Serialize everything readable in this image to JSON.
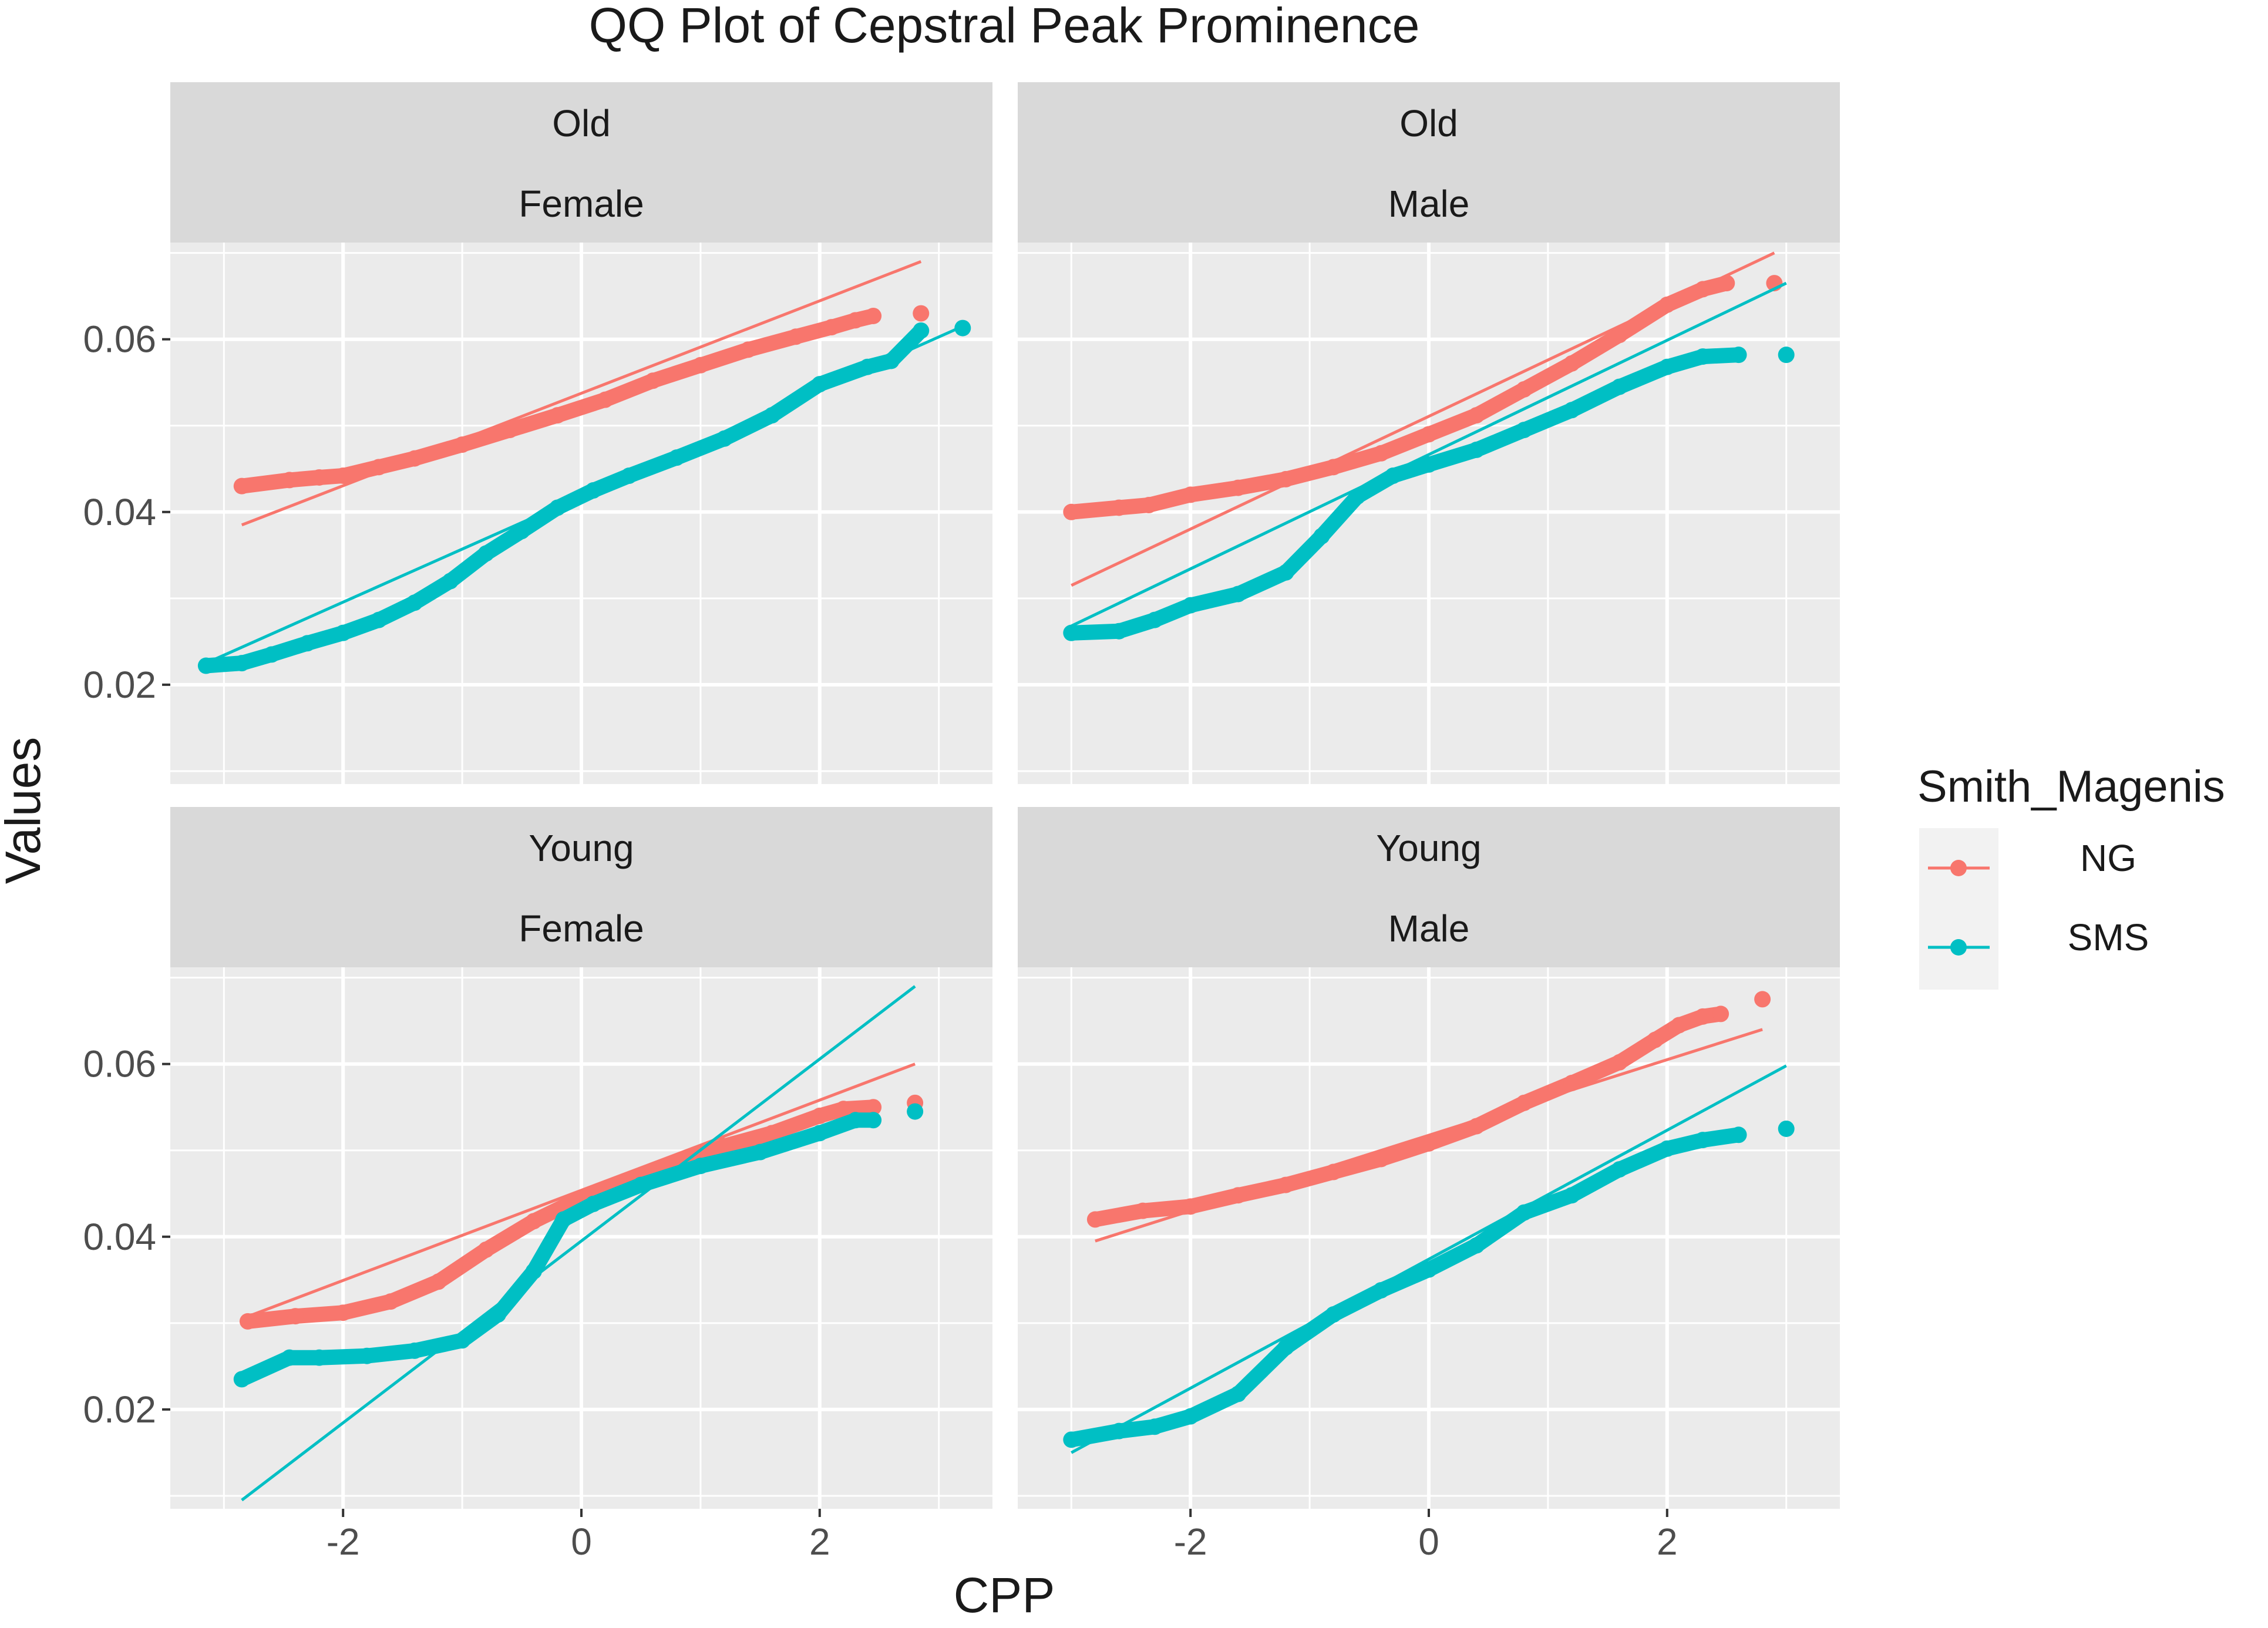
{
  "colors": {
    "NG": "#F8766D",
    "SMS": "#00BFC4",
    "panel_bg": "#EBEBEB",
    "strip_bg": "#D9D9D9",
    "grid": "#FFFFFF"
  },
  "chart_data": {
    "type": "scatter",
    "title": "QQ Plot of Cepstral Peak Prominence",
    "xlabel": "CPP",
    "ylabel": "Values",
    "xlim": [
      -3.45,
      3.45
    ],
    "ylim": [
      0.0085,
      0.0712
    ],
    "x_ticks": [
      -2,
      0,
      2
    ],
    "x_tick_labels": [
      "-2",
      "0",
      "2"
    ],
    "y_ticks": [
      0.02,
      0.04,
      0.06
    ],
    "y_tick_labels": [
      "0.02",
      "0.04",
      "0.06"
    ],
    "legend": {
      "title": "Smith_Magenis",
      "position": "right",
      "entries": [
        "NG",
        "SMS"
      ]
    },
    "panels": [
      {
        "strip": [
          "Old",
          "Female"
        ],
        "series": [
          {
            "name": "NG",
            "line": [
              [
                -2.85,
                0.0385
              ],
              [
                2.85,
                0.069
              ]
            ],
            "points": [
              [
                -2.85,
                0.043
              ],
              [
                -2.45,
                0.0437
              ],
              [
                -2.2,
                0.044
              ],
              [
                -2.0,
                0.0442
              ],
              [
                -1.7,
                0.0452
              ],
              [
                -1.4,
                0.0462
              ],
              [
                -1.0,
                0.0478
              ],
              [
                -0.6,
                0.0495
              ],
              [
                -0.2,
                0.0512
              ],
              [
                0.2,
                0.053
              ],
              [
                0.6,
                0.0552
              ],
              [
                1.0,
                0.057
              ],
              [
                1.4,
                0.0588
              ],
              [
                1.8,
                0.0603
              ],
              [
                2.1,
                0.0614
              ],
              [
                2.3,
                0.0622
              ],
              [
                2.45,
                0.0627
              ],
              [
                2.85,
                0.063
              ]
            ]
          },
          {
            "name": "SMS",
            "line": [
              [
                -3.15,
                0.0225
              ],
              [
                3.2,
                0.0615
              ]
            ],
            "points": [
              [
                -3.15,
                0.0222
              ],
              [
                -2.85,
                0.0225
              ],
              [
                -2.6,
                0.0235
              ],
              [
                -2.3,
                0.0248
              ],
              [
                -2.0,
                0.026
              ],
              [
                -1.7,
                0.0275
              ],
              [
                -1.4,
                0.0295
              ],
              [
                -1.1,
                0.032
              ],
              [
                -0.8,
                0.0352
              ],
              [
                -0.5,
                0.0378
              ],
              [
                -0.2,
                0.0405
              ],
              [
                0.1,
                0.0425
              ],
              [
                0.4,
                0.0442
              ],
              [
                0.8,
                0.0463
              ],
              [
                1.2,
                0.0485
              ],
              [
                1.6,
                0.0512
              ],
              [
                2.0,
                0.0548
              ],
              [
                2.4,
                0.0568
              ],
              [
                2.6,
                0.0575
              ],
              [
                2.85,
                0.061
              ],
              [
                3.2,
                0.0613
              ]
            ]
          }
        ]
      },
      {
        "strip": [
          "Old",
          "Male"
        ],
        "series": [
          {
            "name": "NG",
            "line": [
              [
                -3.0,
                0.0315
              ],
              [
                2.9,
                0.07
              ]
            ],
            "points": [
              [
                -3.0,
                0.04
              ],
              [
                -2.6,
                0.0405
              ],
              [
                -2.35,
                0.0408
              ],
              [
                -2.0,
                0.042
              ],
              [
                -1.6,
                0.0428
              ],
              [
                -1.2,
                0.0438
              ],
              [
                -0.8,
                0.0452
              ],
              [
                -0.4,
                0.0468
              ],
              [
                0.0,
                0.049
              ],
              [
                0.4,
                0.0512
              ],
              [
                0.8,
                0.0542
              ],
              [
                1.2,
                0.0572
              ],
              [
                1.6,
                0.0605
              ],
              [
                2.0,
                0.064
              ],
              [
                2.3,
                0.0658
              ],
              [
                2.5,
                0.0665
              ],
              [
                2.9,
                0.0665
              ]
            ]
          },
          {
            "name": "SMS",
            "line": [
              [
                -3.0,
                0.0268
              ],
              [
                3.0,
                0.0665
              ]
            ],
            "points": [
              [
                -3.0,
                0.026
              ],
              [
                -2.6,
                0.0262
              ],
              [
                -2.3,
                0.0275
              ],
              [
                -2.0,
                0.0292
              ],
              [
                -1.6,
                0.0305
              ],
              [
                -1.2,
                0.033
              ],
              [
                -0.9,
                0.0372
              ],
              [
                -0.6,
                0.0418
              ],
              [
                -0.3,
                0.0442
              ],
              [
                0.0,
                0.0455
              ],
              [
                0.4,
                0.0472
              ],
              [
                0.8,
                0.0495
              ],
              [
                1.2,
                0.0518
              ],
              [
                1.6,
                0.0545
              ],
              [
                2.0,
                0.0568
              ],
              [
                2.3,
                0.058
              ],
              [
                2.6,
                0.0582
              ],
              [
                3.0,
                0.0582
              ]
            ]
          }
        ]
      },
      {
        "strip": [
          "Young",
          "Female"
        ],
        "series": [
          {
            "name": "NG",
            "line": [
              [
                -2.85,
                0.0305
              ],
              [
                2.8,
                0.06
              ]
            ],
            "points": [
              [
                -2.8,
                0.0302
              ],
              [
                -2.4,
                0.0308
              ],
              [
                -2.0,
                0.0312
              ],
              [
                -1.6,
                0.0325
              ],
              [
                -1.2,
                0.0348
              ],
              [
                -0.8,
                0.0385
              ],
              [
                -0.4,
                0.0418
              ],
              [
                0.0,
                0.0445
              ],
              [
                0.4,
                0.0465
              ],
              [
                0.8,
                0.0485
              ],
              [
                1.2,
                0.0505
              ],
              [
                1.6,
                0.052
              ],
              [
                2.0,
                0.054
              ],
              [
                2.2,
                0.0548
              ],
              [
                2.45,
                0.055
              ],
              [
                2.8,
                0.0555
              ]
            ]
          },
          {
            "name": "SMS",
            "line": [
              [
                -2.85,
                0.0095
              ],
              [
                2.8,
                0.069
              ]
            ],
            "points": [
              [
                -2.85,
                0.0235
              ],
              [
                -2.45,
                0.026
              ],
              [
                -2.2,
                0.026
              ],
              [
                -1.8,
                0.0262
              ],
              [
                -1.4,
                0.0268
              ],
              [
                -1.0,
                0.028
              ],
              [
                -0.7,
                0.031
              ],
              [
                -0.4,
                0.036
              ],
              [
                -0.15,
                0.042
              ],
              [
                0.1,
                0.0438
              ],
              [
                0.5,
                0.046
              ],
              [
                1.0,
                0.0482
              ],
              [
                1.5,
                0.0498
              ],
              [
                2.0,
                0.052
              ],
              [
                2.3,
                0.0535
              ],
              [
                2.45,
                0.0535
              ],
              [
                2.8,
                0.0545
              ]
            ]
          }
        ]
      },
      {
        "strip": [
          "Young",
          "Male"
        ],
        "series": [
          {
            "name": "NG",
            "line": [
              [
                -2.8,
                0.0395
              ],
              [
                2.8,
                0.064
              ]
            ],
            "points": [
              [
                -2.8,
                0.042
              ],
              [
                -2.4,
                0.043
              ],
              [
                -2.0,
                0.0435
              ],
              [
                -1.6,
                0.0448
              ],
              [
                -1.2,
                0.046
              ],
              [
                -0.8,
                0.0475
              ],
              [
                -0.4,
                0.049
              ],
              [
                0.0,
                0.0508
              ],
              [
                0.4,
                0.0528
              ],
              [
                0.8,
                0.0555
              ],
              [
                1.2,
                0.0578
              ],
              [
                1.6,
                0.0602
              ],
              [
                1.9,
                0.0628
              ],
              [
                2.1,
                0.0645
              ],
              [
                2.3,
                0.0655
              ],
              [
                2.45,
                0.0658
              ],
              [
                2.8,
                0.0675
              ]
            ]
          },
          {
            "name": "SMS",
            "line": [
              [
                -3.0,
                0.015
              ],
              [
                3.0,
                0.0598
              ]
            ],
            "points": [
              [
                -3.0,
                0.0165
              ],
              [
                -2.6,
                0.0175
              ],
              [
                -2.3,
                0.018
              ],
              [
                -2.0,
                0.0192
              ],
              [
                -1.6,
                0.0218
              ],
              [
                -1.2,
                0.0272
              ],
              [
                -0.8,
                0.031
              ],
              [
                -0.4,
                0.0338
              ],
              [
                0.0,
                0.0362
              ],
              [
                0.4,
                0.039
              ],
              [
                0.8,
                0.0428
              ],
              [
                1.2,
                0.0448
              ],
              [
                1.6,
                0.0478
              ],
              [
                2.0,
                0.0502
              ],
              [
                2.3,
                0.0512
              ],
              [
                2.6,
                0.0518
              ],
              [
                3.0,
                0.0525
              ]
            ]
          }
        ]
      }
    ]
  }
}
